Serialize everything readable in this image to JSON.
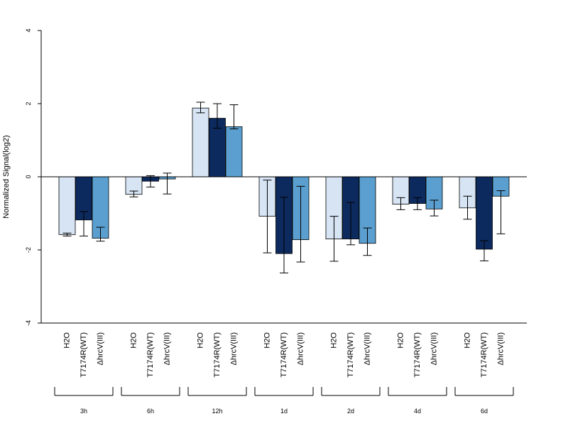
{
  "chart_data": {
    "type": "bar",
    "ylabel": "Normalized Signal(log2)",
    "ylim": [
      -4,
      4
    ],
    "yticks": [
      "-4",
      "-2",
      "0",
      "2",
      "4"
    ],
    "grid": false,
    "legend": "none",
    "conditions": [
      "H2O",
      "T7174R(WT)",
      "ΔhrcV(III)"
    ],
    "colors": [
      "#d6e4f4",
      "#0d2a5e",
      "#5a9fcf"
    ],
    "groups": [
      {
        "label": "3h",
        "values": [
          -1.58,
          -1.18,
          -1.68
        ],
        "err_low": [
          -1.62,
          -1.62,
          -1.76
        ],
        "err_high": [
          -1.54,
          -0.95,
          -1.38
        ]
      },
      {
        "label": "6h",
        "values": [
          -0.48,
          -0.12,
          -0.06
        ],
        "err_low": [
          -0.55,
          -0.28,
          -0.47
        ],
        "err_high": [
          -0.39,
          0.03,
          0.1
        ]
      },
      {
        "label": "12h",
        "values": [
          1.88,
          1.6,
          1.37
        ],
        "err_low": [
          1.75,
          1.33,
          1.31
        ],
        "err_high": [
          2.04,
          2.0,
          1.97
        ]
      },
      {
        "label": "1d",
        "values": [
          -1.08,
          -2.1,
          -1.72
        ],
        "err_low": [
          -2.08,
          -2.63,
          -2.33
        ],
        "err_high": [
          -0.09,
          -0.56,
          -0.26
        ]
      },
      {
        "label": "2d",
        "values": [
          -1.7,
          -1.7,
          -1.82
        ],
        "err_low": [
          -2.31,
          -1.86,
          -2.15
        ],
        "err_high": [
          -1.08,
          -0.7,
          -1.4
        ]
      },
      {
        "label": "4d",
        "values": [
          -0.75,
          -0.73,
          -0.88
        ],
        "err_low": [
          -0.9,
          -0.9,
          -1.07
        ],
        "err_high": [
          -0.57,
          -0.57,
          -0.64
        ]
      },
      {
        "label": "6d",
        "values": [
          -0.85,
          -1.98,
          -0.53
        ],
        "err_low": [
          -1.16,
          -2.3,
          -1.56
        ],
        "err_high": [
          -0.53,
          -1.75,
          -0.38
        ]
      }
    ]
  }
}
